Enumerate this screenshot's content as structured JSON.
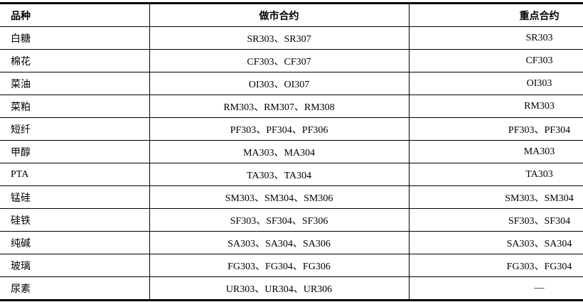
{
  "table": {
    "headers": [
      "品种",
      "做市合约",
      "重点合约"
    ],
    "rows": [
      [
        "白糖",
        "SR303、SR307",
        "SR303"
      ],
      [
        "棉花",
        "CF303、CF307",
        "CF303"
      ],
      [
        "菜油",
        "OI303、OI307",
        "OI303"
      ],
      [
        "菜粕",
        "RM303、RM307、RM308",
        "RM303"
      ],
      [
        "短纤",
        "PF303、PF304、PF306",
        "PF303、PF304"
      ],
      [
        "甲醇",
        "MA303、MA304",
        "MA303"
      ],
      [
        "PTA",
        "TA303、TA304",
        "TA303"
      ],
      [
        "锰硅",
        "SM303、SM304、SM306",
        "SM303、SM304"
      ],
      [
        "硅铁",
        "SF303、SF304、SF306",
        "SF303、SF304"
      ],
      [
        "纯碱",
        "SA303、SA304、SA306",
        "SA303、SA304"
      ],
      [
        "玻璃",
        "FG303、FG304、FG306",
        "FG303、FG304"
      ],
      [
        "尿素",
        "UR303、UR304、UR306",
        "—"
      ]
    ]
  }
}
